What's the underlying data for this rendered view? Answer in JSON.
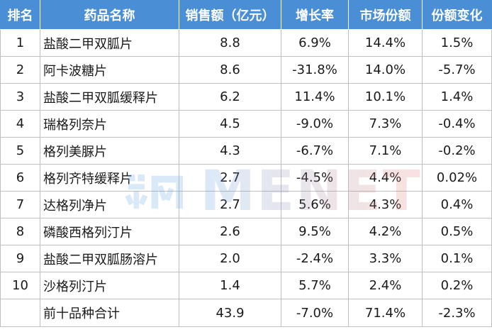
{
  "table": {
    "headers": {
      "rank": "排名",
      "name": "药品名称",
      "sales": "销售额（亿元）",
      "growth": "增长率",
      "share": "市场份额",
      "change": "份额变化"
    },
    "rows": [
      {
        "rank": "1",
        "name": "盐酸二甲双胍片",
        "sales": "8.8",
        "growth": "6.9%",
        "share": "14.4%",
        "change": "1.5%"
      },
      {
        "rank": "2",
        "name": "阿卡波糖片",
        "sales": "8.6",
        "growth": "-31.8%",
        "share": "14.0%",
        "change": "-5.7%"
      },
      {
        "rank": "3",
        "name": "盐酸二甲双胍缓释片",
        "sales": "6.2",
        "growth": "11.4%",
        "share": "10.1%",
        "change": "1.4%"
      },
      {
        "rank": "4",
        "name": "瑞格列奈片",
        "sales": "4.5",
        "growth": "-9.0%",
        "share": "7.3%",
        "change": "-0.4%"
      },
      {
        "rank": "5",
        "name": "格列美脲片",
        "sales": "4.3",
        "growth": "-6.7%",
        "share": "7.1%",
        "change": "-0.2%"
      },
      {
        "rank": "6",
        "name": "格列齐特缓释片",
        "sales": "2.7",
        "growth": "-4.5%",
        "share": "4.4%",
        "change": "0.02%"
      },
      {
        "rank": "7",
        "name": "达格列净片",
        "sales": "2.7",
        "growth": "5.6%",
        "share": "4.3%",
        "change": "0.4%"
      },
      {
        "rank": "8",
        "name": "磷酸西格列汀片",
        "sales": "2.6",
        "growth": "9.5%",
        "share": "4.2%",
        "change": "0.5%"
      },
      {
        "rank": "9",
        "name": "盐酸二甲双胍肠溶片",
        "sales": "2.0",
        "growth": "-2.4%",
        "share": "3.3%",
        "change": "0.1%"
      },
      {
        "rank": "10",
        "name": "沙格列汀片",
        "sales": "1.4",
        "growth": "5.7%",
        "share": "2.4%",
        "change": "0.2%"
      }
    ],
    "total": {
      "rank": "",
      "name": "前十品种合计",
      "sales": "43.9",
      "growth": "-7.0%",
      "share": "71.4%",
      "change": "-2.3%"
    }
  },
  "watermark": {
    "text": "MENET",
    "logo_icon": "menet-logo-icon"
  },
  "colors": {
    "header_bg": "#4a8fd6",
    "header_text": "#ffffff",
    "grid": "#bfbfbf",
    "text": "#1a1a1a"
  }
}
